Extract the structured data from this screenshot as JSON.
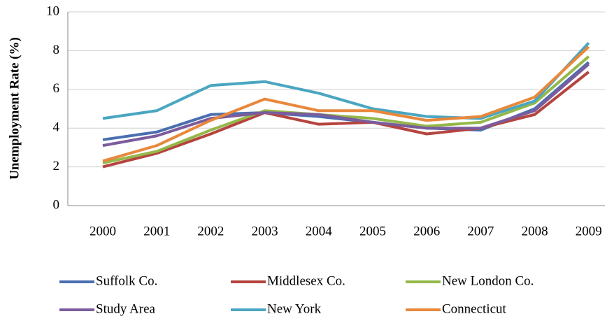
{
  "chart_data": {
    "type": "line",
    "y_label": "Unemployment Rate (%)",
    "categories": [
      "2000",
      "2001",
      "2002",
      "2003",
      "2004",
      "2005",
      "2006",
      "2007",
      "2008",
      "2009"
    ],
    "series": [
      {
        "name": "Suffolk Co.",
        "color": "#4a6fb0",
        "values": [
          3.4,
          3.8,
          4.7,
          4.8,
          4.6,
          4.3,
          4.0,
          3.9,
          5.0,
          7.4
        ]
      },
      {
        "name": "Middlesex Co.",
        "color": "#b5443f",
        "values": [
          2.0,
          2.7,
          3.7,
          4.8,
          4.2,
          4.3,
          3.7,
          4.0,
          4.7,
          6.9
        ]
      },
      {
        "name": "New London Co.",
        "color": "#94b84a",
        "values": [
          2.2,
          2.8,
          3.9,
          4.9,
          4.7,
          4.5,
          4.1,
          4.3,
          5.3,
          7.7
        ]
      },
      {
        "name": "Study Area",
        "color": "#7b5c9c",
        "values": [
          3.1,
          3.6,
          4.5,
          4.8,
          4.7,
          4.3,
          4.0,
          4.0,
          4.9,
          7.3
        ]
      },
      {
        "name": "New York",
        "color": "#4aa6c0",
        "values": [
          4.5,
          4.9,
          6.2,
          6.4,
          5.8,
          5.0,
          4.6,
          4.5,
          5.4,
          8.4
        ]
      },
      {
        "name": "Connecticut",
        "color": "#e8883c",
        "values": [
          2.3,
          3.1,
          4.4,
          5.5,
          4.9,
          4.9,
          4.4,
          4.6,
          5.6,
          8.2
        ]
      }
    ],
    "ylim": [
      0,
      10
    ],
    "yticks": [
      0,
      2,
      4,
      6,
      8,
      10
    ],
    "grid": true
  }
}
